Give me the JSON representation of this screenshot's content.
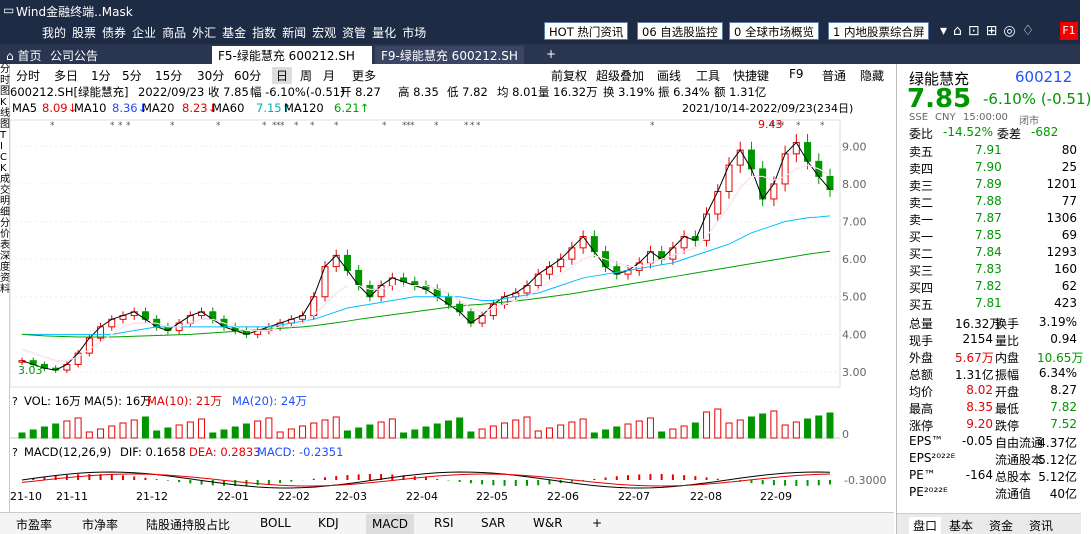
{
  "app": {
    "title": "Wind金融终端..Mask",
    "menu": [
      "我的",
      "股票",
      "债券",
      "企业",
      "商品",
      "外汇",
      "基金",
      "指数",
      "新闻",
      "宏观",
      "资管",
      "量化",
      "市场"
    ],
    "buttons": [
      "HOT 热门资讯",
      "06 自选股监控",
      "0 全球市场概览",
      "1 内地股票综合屏"
    ],
    "f1": "F1"
  },
  "tabs": {
    "home": "首页",
    "announce": "公司公告",
    "f5": "F5-绿能慧充 600212.SH",
    "f9": "F9-绿能慧充 600212.SH",
    "add": "+"
  },
  "left_strip": [
    "分",
    "时",
    "图",
    "K",
    "线",
    "图",
    "T",
    "I",
    "C",
    "K",
    "成",
    "交",
    "明",
    "细",
    "分",
    "价",
    "表",
    "深",
    "度",
    "资",
    "料"
  ],
  "periods": [
    "分时",
    "多日",
    "1分",
    "5分",
    "15分",
    "30分",
    "60分",
    "日",
    "周",
    "月",
    "更多"
  ],
  "tools": [
    "前复权",
    "超级叠加",
    "画线",
    "工具",
    "快捷键",
    "F9",
    "普通",
    "隐藏"
  ],
  "info": {
    "code": "600212.SH[绿能慧充]",
    "date": "2022/09/23",
    "close": "收 7.85",
    "amp": "幅 -6.10%(-0.51)",
    "open": "开 8.27",
    "high": "高 8.35",
    "low": "低 7.82",
    "avg": "均 8.01",
    "vol": "量 16.32万",
    "turnover": "换 3.19%",
    "swing": "振 6.34%",
    "amount": "额 1.31亿"
  },
  "ma": {
    "ma5": "MA5",
    "ma5v": "8.09↓",
    "ma10": "MA10",
    "ma10v": "8.36↓",
    "ma20": "MA20",
    "ma20v": "8.23↓",
    "ma60": "MA60",
    "ma60v": "7.15↑",
    "ma120": "MA120",
    "ma120v": "6.21↑"
  },
  "range": "2021/10/14-2022/09/23(234日)",
  "vol_line": {
    "q": "?",
    "vol": "VOL: 16万",
    "ma5": "MA(5): 16万",
    "ma10": "MA(10): 21万",
    "ma20": "MA(20): 24万"
  },
  "macd_line": {
    "q": "?",
    "macd": "MACD(12,26,9)",
    "dif": "DIF: 0.1658",
    "dea": "DEA: 0.2833",
    "m": "MACD: -0.2351"
  },
  "bottom_tabs": [
    "市盈率",
    "市净率",
    "陆股通持股占比",
    "BOLL",
    "KDJ",
    "MACD",
    "RSI",
    "SAR",
    "W&R",
    "+"
  ],
  "colors": {
    "up": "#e60000",
    "down": "#009600",
    "ma5": "#000000",
    "ma10": "#2050ff",
    "ma20": "#cc0066",
    "ma60": "#00a000",
    "ma120": "#00bfff"
  },
  "chart_data": {
    "type": "candlestick",
    "price_ticks": [
      "9.00",
      "8.00",
      "7.00",
      "6.00",
      "5.00",
      "4.00",
      "3.00"
    ],
    "price_range": [
      2.6,
      9.7
    ],
    "max_label": "9.43",
    "min_label": "3.03",
    "month_labels": [
      "21-10",
      "21-11",
      "21-12",
      "22-01",
      "22-02",
      "22-03",
      "22-04",
      "22-05",
      "22-06",
      "22-07",
      "22-08",
      "22-09"
    ],
    "vol_tick": "0",
    "macd_tick": "-0.3000",
    "close_path": [
      3.3,
      3.2,
      3.1,
      3.05,
      3.2,
      3.5,
      3.9,
      4.2,
      4.4,
      4.5,
      4.6,
      4.4,
      4.2,
      4.1,
      4.3,
      4.5,
      4.6,
      4.4,
      4.2,
      4.1,
      4.0,
      4.1,
      4.2,
      4.3,
      4.4,
      4.5,
      5.0,
      5.8,
      6.1,
      5.7,
      5.3,
      5.0,
      5.3,
      5.5,
      5.4,
      5.3,
      5.2,
      5.0,
      4.8,
      4.6,
      4.3,
      4.5,
      4.8,
      5.0,
      5.1,
      5.3,
      5.6,
      5.8,
      6.0,
      6.3,
      6.6,
      6.2,
      5.8,
      5.6,
      5.7,
      5.9,
      6.2,
      6.0,
      6.3,
      6.6,
      6.5,
      7.2,
      7.8,
      8.5,
      8.9,
      8.4,
      7.6,
      8.0,
      8.8,
      9.1,
      8.6,
      8.2,
      7.85
    ],
    "ma20_path": [
      3.6,
      3.5,
      3.4,
      3.3,
      3.3,
      3.4,
      3.6,
      3.8,
      4.0,
      4.2,
      4.3,
      4.3,
      4.3,
      4.2,
      4.2,
      4.3,
      4.4,
      4.4,
      4.3,
      4.2,
      4.1,
      4.1,
      4.1,
      4.2,
      4.2,
      4.3,
      4.5,
      4.8,
      5.1,
      5.3,
      5.3,
      5.2,
      5.2,
      5.3,
      5.3,
      5.3,
      5.3,
      5.2,
      5.1,
      4.9,
      4.7,
      4.6,
      4.7,
      4.8,
      4.9,
      5.0,
      5.2,
      5.4,
      5.6,
      5.8,
      6.0,
      6.1,
      6.0,
      5.9,
      5.8,
      5.8,
      5.9,
      6.0,
      6.1,
      6.2,
      6.3,
      6.6,
      7.0,
      7.4,
      7.9,
      8.2,
      8.2,
      8.1,
      8.2,
      8.4,
      8.5,
      8.4,
      8.23
    ],
    "ma60_path": [
      4.0,
      4.0,
      4.0,
      4.0,
      4.0,
      4.0,
      4.0,
      4.0,
      4.0,
      4.05,
      4.1,
      4.15,
      4.2,
      4.2,
      4.2,
      4.2,
      4.2,
      4.2,
      4.2,
      4.2,
      4.2,
      4.2,
      4.2,
      4.25,
      4.3,
      4.35,
      4.4,
      4.5,
      4.6,
      4.7,
      4.75,
      4.8,
      4.85,
      4.9,
      4.95,
      5.0,
      5.0,
      5.0,
      5.0,
      5.0,
      4.95,
      4.9,
      4.9,
      4.95,
      5.0,
      5.05,
      5.1,
      5.2,
      5.3,
      5.4,
      5.5,
      5.55,
      5.6,
      5.65,
      5.7,
      5.75,
      5.8,
      5.85,
      5.9,
      6.0,
      6.1,
      6.2,
      6.3,
      6.4,
      6.55,
      6.7,
      6.8,
      6.9,
      7.0,
      7.05,
      7.1,
      7.12,
      7.15
    ],
    "ma120_path": [
      4.0,
      3.98,
      3.96,
      3.95,
      3.94,
      3.93,
      3.93,
      3.93,
      3.93,
      3.94,
      3.95,
      3.96,
      3.97,
      3.98,
      3.99,
      4.0,
      4.02,
      4.04,
      4.06,
      4.08,
      4.1,
      4.12,
      4.14,
      4.16,
      4.18,
      4.2,
      4.23,
      4.27,
      4.31,
      4.35,
      4.4,
      4.44,
      4.48,
      4.52,
      4.56,
      4.6,
      4.64,
      4.68,
      4.72,
      4.75,
      4.78,
      4.8,
      4.83,
      4.86,
      4.89,
      4.92,
      4.96,
      5.0,
      5.04,
      5.08,
      5.13,
      5.18,
      5.23,
      5.28,
      5.33,
      5.38,
      5.43,
      5.48,
      5.53,
      5.58,
      5.63,
      5.68,
      5.73,
      5.78,
      5.83,
      5.88,
      5.93,
      5.98,
      6.03,
      6.08,
      6.13,
      6.17,
      6.21
    ]
  },
  "quote": {
    "name": "绿能慧充",
    "code": "600212",
    "price": "7.85",
    "chg": "-6.10% (-0.51)",
    "sse": "SSE",
    "cny": "CNY",
    "time": "15:00:00",
    "status": "闭市",
    "weibi_l": "委比",
    "weibi": "-14.52%",
    "weicha_l": "委差",
    "weicha": "-682",
    "asks": [
      {
        "l": "卖五",
        "p": "7.91",
        "v": "80"
      },
      {
        "l": "卖四",
        "p": "7.90",
        "v": "25"
      },
      {
        "l": "卖三",
        "p": "7.89",
        "v": "1201"
      },
      {
        "l": "卖二",
        "p": "7.88",
        "v": "77"
      },
      {
        "l": "卖一",
        "p": "7.87",
        "v": "1306"
      }
    ],
    "bids": [
      {
        "l": "买一",
        "p": "7.85",
        "v": "69"
      },
      {
        "l": "买二",
        "p": "7.84",
        "v": "1293"
      },
      {
        "l": "买三",
        "p": "7.83",
        "v": "160"
      },
      {
        "l": "买四",
        "p": "7.82",
        "v": "62"
      },
      {
        "l": "买五",
        "p": "7.81",
        "v": "423"
      }
    ],
    "stats": [
      [
        "总量",
        "16.32万",
        "换手",
        "3.19%"
      ],
      [
        "现手",
        "2154",
        "量比",
        "0.94"
      ],
      [
        "外盘",
        "5.67万",
        "内盘",
        "10.65万"
      ],
      [
        "总额",
        "1.31亿",
        "振幅",
        "6.34%"
      ],
      [
        "均价",
        "8.02",
        "开盘",
        "8.27"
      ],
      [
        "最高",
        "8.35",
        "最低",
        "7.82"
      ],
      [
        "涨停",
        "9.20",
        "跌停",
        "7.52"
      ],
      [
        "EPS™",
        "-0.05",
        "自由流通",
        "4.37亿"
      ],
      [
        "EPS²⁰²²ᴱ",
        "",
        "流通股本",
        "5.12亿"
      ],
      [
        "PE™",
        "-164",
        "总股本",
        "5.12亿"
      ],
      [
        "PE²⁰²²ᴱ",
        "",
        "流通值",
        "40亿"
      ]
    ],
    "tabs": [
      "盘口",
      "基本",
      "资金",
      "资讯"
    ]
  }
}
